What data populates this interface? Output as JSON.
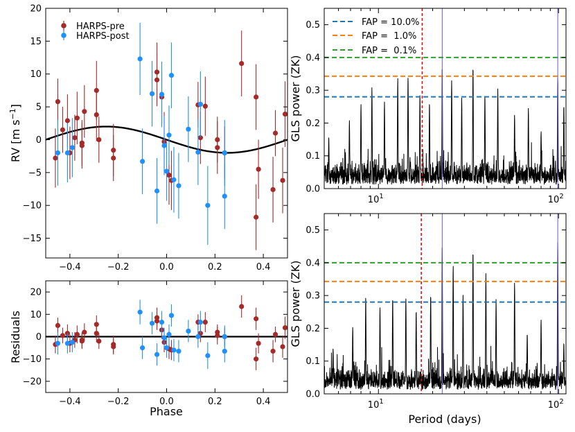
{
  "colors": {
    "pre": "#a52a2a",
    "post": "#1e90ff",
    "model": "#000000",
    "fap10": "#1f77b4",
    "fap1": "#ff7f0e",
    "fap01": "#2ca02c",
    "period_line": "#e00000",
    "signal_line": "#6a5acd"
  },
  "chart_data": [
    {
      "id": "rv",
      "type": "scatter",
      "ylabel": "RV [m s",
      "ylabel_sup": "−1",
      "ylabel_close": "]",
      "xlim": [
        -0.5,
        0.5
      ],
      "ylim": [
        -18,
        20
      ],
      "xticks": [
        "−0.4",
        "−0.2",
        "0.0",
        "0.2",
        "0.4"
      ],
      "xtick_values": [
        -0.4,
        -0.2,
        0.0,
        0.2,
        0.4
      ],
      "yticks": [
        "−15",
        "−10",
        "−5",
        "0",
        "5",
        "10",
        "15",
        "20"
      ],
      "ytick_values": [
        -15,
        -10,
        -5,
        0,
        5,
        10,
        15,
        20
      ],
      "legend": [
        "HARPS-pre",
        "HARPS-post"
      ],
      "model": {
        "kind": "sine",
        "amplitude": 2.0,
        "phase_of_max": -0.25
      },
      "series": [
        {
          "name": "HARPS-pre",
          "x": [
            -0.46,
            -0.45,
            -0.43,
            -0.41,
            -0.4,
            -0.38,
            -0.37,
            -0.35,
            -0.35,
            -0.34,
            -0.29,
            -0.29,
            -0.28,
            -0.22,
            -0.22,
            -0.04,
            -0.04,
            -0.02,
            -0.01,
            0.01,
            0.02,
            0.13,
            0.14,
            0.16,
            0.21,
            0.21,
            0.24,
            0.31,
            0.37,
            0.37,
            0.38,
            0.44,
            0.45,
            0.48,
            0.49
          ],
          "y": [
            -2.8,
            5.8,
            1.5,
            2.9,
            -2.0,
            0.3,
            3.3,
            -0.9,
            -0.5,
            4.3,
            3.8,
            7.5,
            0.0,
            -1.6,
            -2.8,
            10.3,
            9.1,
            6.5,
            -0.3,
            -5.4,
            -6.2,
            5.3,
            0.3,
            5.1,
            -1.2,
            0.0,
            -2.0,
            11.6,
            -11.8,
            6.5,
            -4.5,
            -7.6,
            1.0,
            -6.2,
            3.9
          ],
          "err": [
            4.5,
            3.5,
            3.5,
            4.0,
            4.0,
            3.5,
            4.0,
            3.5,
            3.5,
            4.0,
            4.0,
            4.5,
            3.5,
            4.0,
            3.5,
            4.5,
            4.0,
            4.0,
            4.5,
            4.5,
            4.5,
            3.5,
            4.0,
            4.5,
            4.0,
            3.5,
            4.0,
            5.0,
            5.0,
            5.0,
            4.5,
            5.0,
            3.5,
            5.0,
            5.0
          ]
        },
        {
          "name": "HARPS-post",
          "x": [
            -0.45,
            -0.41,
            -0.39,
            -0.1,
            -0.11,
            -0.06,
            -0.04,
            -0.02,
            -0.01,
            0.0,
            0.01,
            0.02,
            0.03,
            0.05,
            0.09,
            0.13,
            0.14,
            0.17,
            0.24,
            0.24
          ],
          "y": [
            -2.0,
            -2.0,
            -1.2,
            -3.3,
            12.3,
            7.0,
            -7.8,
            6.9,
            -0.9,
            -4.8,
            0.7,
            9.8,
            -6.1,
            -7.0,
            1.6,
            -1.9,
            5.4,
            -10.0,
            -8.6,
            -2.0
          ],
          "err": [
            5.0,
            4.5,
            4.5,
            5.0,
            5.5,
            5.0,
            5.0,
            5.0,
            4.5,
            4.5,
            4.5,
            5.0,
            5.0,
            5.0,
            5.0,
            5.0,
            5.0,
            6.0,
            5.0,
            5.0
          ]
        }
      ]
    },
    {
      "id": "residuals",
      "type": "scatter",
      "ylabel": "Residuals",
      "xlabel": "Phase",
      "xlim": [
        -0.5,
        0.5
      ],
      "ylim": [
        -25,
        25
      ],
      "xticks": [
        "−0.4",
        "−0.2",
        "0.0",
        "0.2",
        "0.4"
      ],
      "xtick_values": [
        -0.4,
        -0.2,
        0.0,
        0.2,
        0.4
      ],
      "yticks": [
        "−20",
        "−10",
        "0",
        "10",
        "20"
      ],
      "ytick_values": [
        -20,
        -10,
        0,
        10,
        20
      ],
      "series": [
        {
          "name": "HARPS-pre",
          "x": [
            -0.46,
            -0.45,
            -0.43,
            -0.41,
            -0.4,
            -0.38,
            -0.37,
            -0.35,
            -0.35,
            -0.34,
            -0.29,
            -0.29,
            -0.28,
            -0.22,
            -0.22,
            -0.04,
            -0.04,
            -0.02,
            -0.01,
            0.01,
            0.02,
            0.13,
            0.14,
            0.16,
            0.21,
            0.21,
            0.24,
            0.31,
            0.37,
            0.37,
            0.38,
            0.44,
            0.45,
            0.48,
            0.49
          ],
          "y": [
            -3.5,
            5.0,
            0.5,
            1.5,
            -3.0,
            -1.5,
            1.0,
            -2.0,
            -1.5,
            2.0,
            1.5,
            5.5,
            -2.0,
            -3.5,
            -4.5,
            8.5,
            7.0,
            3.0,
            -2.5,
            -5.5,
            -6.0,
            6.5,
            1.5,
            6.5,
            0.5,
            2.0,
            0.0,
            13.5,
            -10.0,
            8.0,
            -3.0,
            -6.5,
            1.0,
            -4.5,
            4.0
          ],
          "err": [
            4.0,
            3.5,
            3.5,
            4.0,
            4.0,
            3.5,
            4.0,
            3.5,
            3.5,
            4.0,
            4.0,
            4.0,
            3.5,
            4.0,
            3.5,
            4.5,
            4.0,
            4.0,
            4.5,
            4.5,
            4.5,
            3.5,
            4.0,
            4.5,
            4.0,
            3.5,
            4.0,
            5.0,
            5.0,
            5.0,
            4.5,
            5.0,
            3.5,
            5.0,
            5.0
          ]
        },
        {
          "name": "HARPS-post",
          "x": [
            -0.45,
            -0.41,
            -0.39,
            -0.1,
            -0.11,
            -0.06,
            -0.04,
            -0.02,
            -0.01,
            0.0,
            0.01,
            0.02,
            0.03,
            0.05,
            0.09,
            0.13,
            0.14,
            0.17,
            0.24,
            0.24
          ],
          "y": [
            -3.0,
            -3.0,
            -2.5,
            -5.0,
            11.0,
            6.0,
            -8.0,
            6.5,
            -0.5,
            -5.0,
            1.0,
            9.5,
            -6.0,
            -6.5,
            2.5,
            0.0,
            6.5,
            -8.5,
            -6.5,
            0.0
          ],
          "err": [
            5.0,
            4.5,
            4.5,
            5.0,
            5.5,
            5.0,
            5.0,
            5.0,
            4.5,
            4.5,
            4.5,
            5.0,
            5.0,
            5.0,
            5.0,
            5.0,
            5.0,
            6.0,
            5.0,
            5.0
          ]
        }
      ]
    },
    {
      "id": "gls_top",
      "type": "line",
      "ylabel": "GLS power (ZK)",
      "xscale": "log",
      "xlim": [
        5,
        110
      ],
      "ylim": [
        0,
        0.55
      ],
      "xtick_values": [
        10,
        100
      ],
      "yticks": [
        "0.0",
        "0.1",
        "0.2",
        "0.3",
        "0.4",
        "0.5"
      ],
      "ytick_values": [
        0.0,
        0.1,
        0.2,
        0.3,
        0.4,
        0.5
      ],
      "fap_levels": [
        {
          "label": "FAP = 10.0%",
          "value": 0.28
        },
        {
          "label": "FAP =  1.0%",
          "value": 0.343
        },
        {
          "label": "FAP =  0.1%",
          "value": 0.4
        }
      ],
      "fap_legend_placement": "top-left",
      "period_marker": 17.5,
      "signal_lines": [
        22.6,
        99.0
      ],
      "peaks": [
        {
          "period": 5.3,
          "power": 0.16
        },
        {
          "period": 6.9,
          "power": 0.21
        },
        {
          "period": 8.0,
          "power": 0.26
        },
        {
          "period": 9.2,
          "power": 0.31
        },
        {
          "period": 10.8,
          "power": 0.27
        },
        {
          "period": 12.8,
          "power": 0.34
        },
        {
          "period": 14.6,
          "power": 0.35
        },
        {
          "period": 17.0,
          "power": 0.29
        },
        {
          "period": 19.2,
          "power": 0.27
        },
        {
          "period": 22.6,
          "power": 0.37
        },
        {
          "period": 25.5,
          "power": 0.34
        },
        {
          "period": 29.0,
          "power": 0.28
        },
        {
          "period": 33.5,
          "power": 0.38
        },
        {
          "period": 39.0,
          "power": 0.29
        },
        {
          "period": 46.0,
          "power": 0.31
        },
        {
          "period": 57.0,
          "power": 0.23
        },
        {
          "period": 68.0,
          "power": 0.25
        },
        {
          "period": 80.0,
          "power": 0.18
        },
        {
          "period": 99.0,
          "power": 0.35
        },
        {
          "period": 107.0,
          "power": 0.26
        }
      ]
    },
    {
      "id": "gls_bottom",
      "type": "line",
      "ylabel": "GLS power (ZK)",
      "xlabel": "Period (days)",
      "xscale": "log",
      "xlim": [
        5,
        110
      ],
      "ylim": [
        0,
        0.55
      ],
      "xtick_values": [
        10,
        100
      ],
      "yticks": [
        "0.0",
        "0.1",
        "0.2",
        "0.3",
        "0.4",
        "0.5"
      ],
      "ytick_values": [
        0.0,
        0.1,
        0.2,
        0.3,
        0.4,
        0.5
      ],
      "fap_levels": [
        {
          "label": "FAP = 10.0%",
          "value": 0.28
        },
        {
          "label": "FAP =  1.0%",
          "value": 0.343
        },
        {
          "label": "FAP =  0.1%",
          "value": 0.4
        }
      ],
      "period_marker": 17.3,
      "signal_lines": [
        22.6,
        99.0
      ],
      "peaks": [
        {
          "period": 5.6,
          "power": 0.14
        },
        {
          "period": 7.2,
          "power": 0.21
        },
        {
          "period": 8.5,
          "power": 0.3
        },
        {
          "period": 10.2,
          "power": 0.27
        },
        {
          "period": 12.0,
          "power": 0.3
        },
        {
          "period": 14.2,
          "power": 0.3
        },
        {
          "period": 16.2,
          "power": 0.26
        },
        {
          "period": 19.5,
          "power": 0.31
        },
        {
          "period": 22.6,
          "power": 0.45
        },
        {
          "period": 26.0,
          "power": 0.4
        },
        {
          "period": 29.5,
          "power": 0.31
        },
        {
          "period": 33.5,
          "power": 0.45
        },
        {
          "period": 39.5,
          "power": 0.37
        },
        {
          "period": 45.0,
          "power": 0.29
        },
        {
          "period": 57.0,
          "power": 0.35
        },
        {
          "period": 67.0,
          "power": 0.19
        },
        {
          "period": 80.0,
          "power": 0.23
        },
        {
          "period": 99.0,
          "power": 0.47
        },
        {
          "period": 107.0,
          "power": 0.16
        }
      ]
    }
  ]
}
